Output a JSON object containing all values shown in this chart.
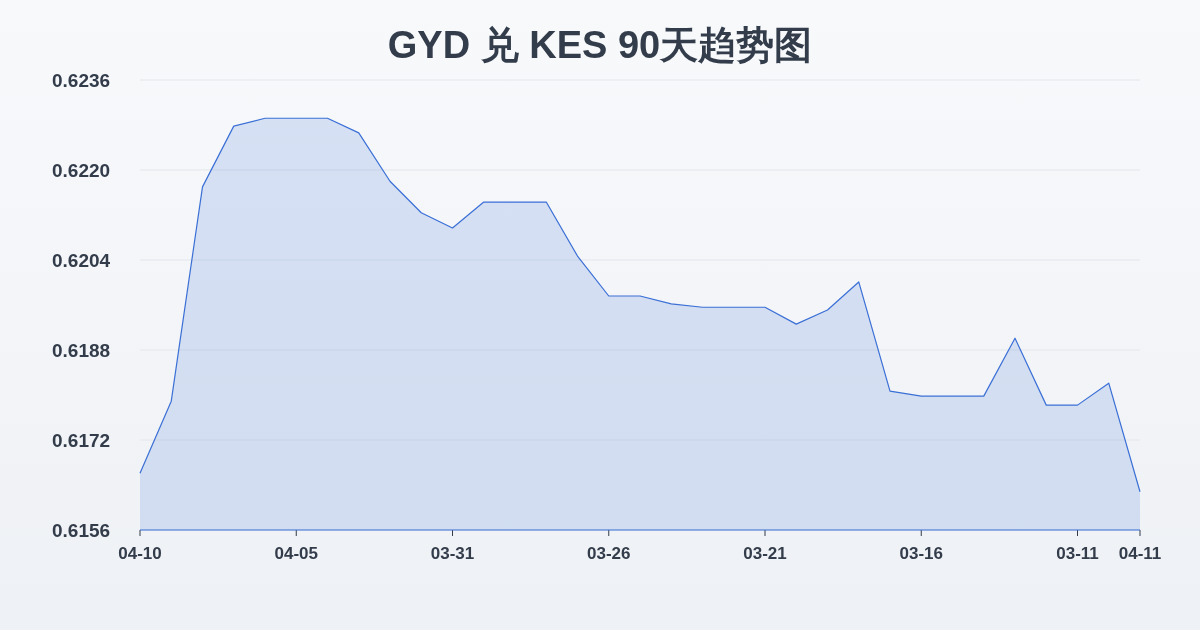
{
  "chart_data": {
    "type": "area",
    "title": "GYD 兑 KES 90天趋势图",
    "categories": [
      "04-10",
      null,
      null,
      null,
      null,
      "04-05",
      null,
      null,
      null,
      null,
      "03-31",
      null,
      null,
      null,
      null,
      "03-26",
      null,
      null,
      null,
      null,
      "03-21",
      null,
      null,
      null,
      null,
      "03-16",
      null,
      null,
      null,
      null,
      "03-11",
      null,
      "04-11"
    ],
    "series": [
      {
        "color": "#3a6fd6",
        "values": [
          0.61661,
          0.61789,
          0.6217,
          0.62278,
          0.62292,
          0.62292,
          0.62292,
          0.62266,
          0.6218,
          0.62124,
          0.62097,
          0.62143,
          0.62143,
          0.62143,
          0.62047,
          0.61976,
          0.61976,
          0.61962,
          0.61956,
          0.61956,
          0.61956,
          0.61926,
          0.61951,
          0.62001,
          0.61807,
          0.61798,
          0.61798,
          0.61798,
          0.61901,
          0.61782,
          0.61782,
          0.61821,
          0.61628
        ]
      }
    ],
    "ylim": [
      0.6156,
      0.6236
    ],
    "yticks": [
      {
        "value": 0.6156,
        "label": "0.6156"
      },
      {
        "value": 0.6172,
        "label": "0.6172"
      },
      {
        "value": 0.6188,
        "label": "0.6188"
      },
      {
        "value": 0.6204,
        "label": "0.6204"
      },
      {
        "value": 0.622,
        "label": "0.6220"
      },
      {
        "value": 0.6236,
        "label": "0.6236"
      }
    ],
    "grid": "y"
  }
}
